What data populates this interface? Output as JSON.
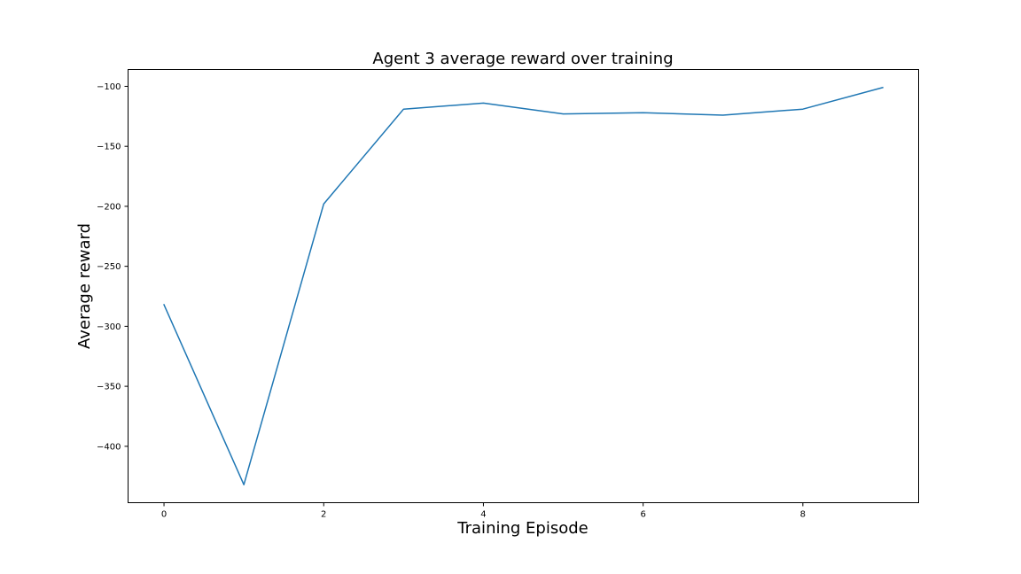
{
  "chart_data": {
    "type": "line",
    "title": "Agent 3 average reward over training",
    "xlabel": "Training Episode",
    "ylabel": "Average reward",
    "x": [
      0,
      1,
      2,
      3,
      4,
      5,
      6,
      7,
      8,
      9
    ],
    "series": [
      {
        "values": [
          -282,
          -432,
          -198,
          -119,
          -114,
          -123,
          -122,
          -124,
          -119,
          -101
        ],
        "color": "#1f77b4"
      }
    ],
    "xlim": [
      -0.45,
      9.45
    ],
    "ylim": [
      -447,
      -86
    ],
    "xticks": [
      0,
      2,
      4,
      6,
      8
    ],
    "xtick_labels": [
      "0",
      "2",
      "4",
      "6",
      "8"
    ],
    "yticks": [
      -100,
      -150,
      -200,
      -250,
      -300,
      -350,
      -400
    ],
    "ytick_labels": [
      "−100",
      "−150",
      "−200",
      "−250",
      "−300",
      "−350",
      "−400"
    ],
    "grid": false,
    "legend": "none"
  }
}
